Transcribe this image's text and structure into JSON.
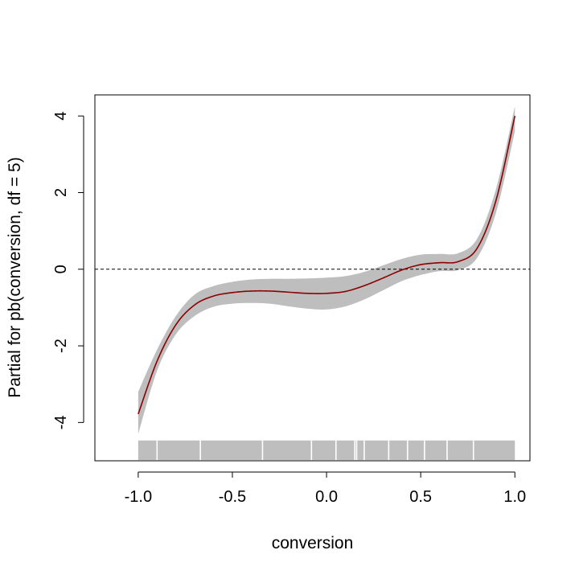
{
  "chart_data": {
    "type": "line",
    "title": "",
    "xlabel": "conversion",
    "ylabel": "Partial for pb(conversion, df = 5)",
    "xlim": [
      -1.23,
      1.08
    ],
    "ylim": [
      -5.0,
      4.55
    ],
    "x_ticks": [
      "-1.0",
      "-0.5",
      "0.0",
      "0.5",
      "1.0"
    ],
    "y_ticks": [
      "-4",
      "-2",
      "0",
      "2",
      "4"
    ],
    "grid": false,
    "legend": "none",
    "reference_line_y": 0,
    "colors": {
      "fit": "#8b0000",
      "band": "#bebebe",
      "rug": "#bebebe",
      "axis": "#000000"
    },
    "series": [
      {
        "x": [
          -1.0,
          -0.9,
          -0.8,
          -0.7,
          -0.6,
          -0.5,
          -0.4,
          -0.3,
          -0.2,
          -0.1,
          0.0,
          0.1,
          0.2,
          0.3,
          0.4,
          0.5,
          0.6,
          0.7,
          0.8,
          0.9,
          1.0
        ],
        "y": [
          -3.78,
          -2.4,
          -1.45,
          -0.93,
          -0.7,
          -0.61,
          -0.57,
          -0.57,
          -0.6,
          -0.63,
          -0.63,
          -0.58,
          -0.43,
          -0.23,
          -0.02,
          0.12,
          0.17,
          0.2,
          0.55,
          1.8,
          4.0
        ],
        "lower": [
          -4.3,
          -2.65,
          -1.7,
          -1.22,
          -0.98,
          -0.9,
          -0.88,
          -0.9,
          -0.97,
          -1.03,
          -1.05,
          -0.97,
          -0.79,
          -0.55,
          -0.31,
          -0.15,
          -0.05,
          -0.02,
          0.3,
          1.48,
          3.6
        ],
        "upper": [
          -3.2,
          -2.1,
          -1.22,
          -0.66,
          -0.44,
          -0.33,
          -0.27,
          -0.25,
          -0.25,
          -0.24,
          -0.22,
          -0.18,
          -0.07,
          0.1,
          0.27,
          0.38,
          0.4,
          0.42,
          0.8,
          2.1,
          4.25
        ]
      }
    ],
    "rug_x_range": [
      -1.0,
      1.0
    ],
    "rug_gaps_x": [
      -0.9,
      -0.67,
      -0.34,
      -0.08,
      0.05,
      0.15,
      0.16,
      0.2,
      0.33,
      0.43,
      0.52,
      0.64,
      0.78
    ]
  }
}
